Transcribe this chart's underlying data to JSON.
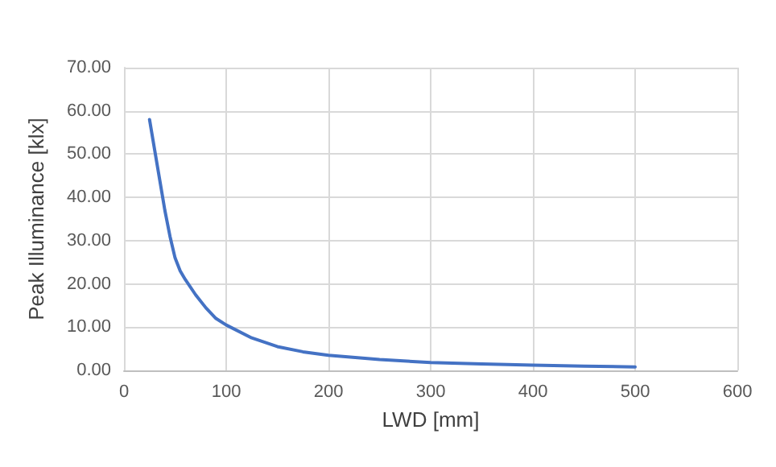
{
  "chart_data": {
    "type": "line",
    "xlabel": "LWD [mm]",
    "ylabel": "Peak Illuminance [klx]",
    "x": [
      25,
      30,
      35,
      40,
      45,
      50,
      55,
      60,
      70,
      80,
      90,
      100,
      125,
      150,
      175,
      200,
      250,
      300,
      350,
      400,
      450,
      500
    ],
    "series": [
      {
        "color": "#4472c4",
        "values": [
          58,
          51,
          44,
          37,
          31,
          26,
          23,
          21,
          17.5,
          14.5,
          12,
          10.5,
          7.5,
          5.5,
          4.3,
          3.5,
          2.5,
          1.8,
          1.5,
          1.2,
          1,
          0.8
        ]
      }
    ],
    "xlim": [
      0,
      600
    ],
    "xticks": [
      0,
      100,
      200,
      300,
      400,
      500,
      600
    ],
    "ylim": [
      0,
      70
    ],
    "yticks": [
      {
        "value": 0,
        "label": "0.00"
      },
      {
        "value": 10,
        "label": "10.00"
      },
      {
        "value": 20,
        "label": "20.00"
      },
      {
        "value": 30,
        "label": "30.00"
      },
      {
        "value": 40,
        "label": "40.00"
      },
      {
        "value": 50,
        "label": "50.00"
      },
      {
        "value": 60,
        "label": "60.00"
      },
      {
        "value": 70,
        "label": "70.00"
      }
    ],
    "grid": true,
    "marker": "none",
    "line_style": "solid"
  }
}
